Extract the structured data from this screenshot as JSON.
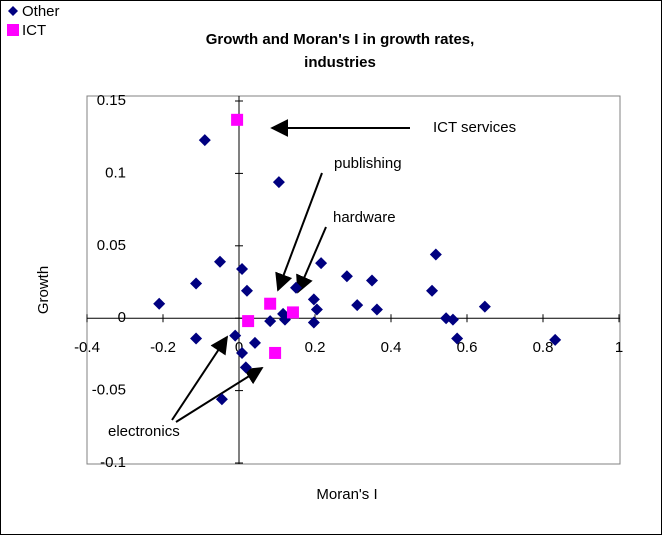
{
  "chart_data": {
    "type": "scatter",
    "title_lines": [
      "Growth and Moran's I in growth rates,",
      "industries"
    ],
    "x_label": "Moran's I",
    "y_label": "Growth",
    "xlim": [
      -0.4,
      1
    ],
    "ylim": [
      -0.1,
      0.15
    ],
    "xticks": [
      -0.4,
      -0.2,
      0,
      0.2,
      0.4,
      0.6,
      0.8,
      1
    ],
    "yticks": [
      0.15,
      0.1,
      0.05,
      0,
      -0.05,
      -0.1
    ],
    "grid": false,
    "legend": "top-left",
    "series": [
      {
        "name": "Other",
        "color": "#000080",
        "marker": "diamond",
        "x": [
          -0.09,
          0.105,
          -0.21,
          -0.113,
          -0.05,
          0.008,
          0.021,
          -0.113,
          -0.01,
          0.008,
          0.042,
          0.018,
          -0.045,
          0.082,
          0.116,
          0.121,
          0.15,
          0.197,
          0.205,
          0.197,
          0.216,
          0.284,
          0.311,
          0.35,
          0.363,
          0.518,
          0.508,
          0.545,
          0.563,
          0.574,
          0.647,
          0.832
        ],
        "values": [
          0.123,
          0.094,
          0.01,
          0.024,
          0.039,
          0.034,
          0.019,
          -0.014,
          -0.012,
          -0.024,
          -0.017,
          -0.034,
          -0.056,
          -0.002,
          0.003,
          -0.001,
          0.021,
          0.013,
          0.006,
          -0.003,
          0.038,
          0.029,
          0.009,
          0.026,
          0.006,
          0.044,
          0.019,
          0.0,
          -0.001,
          -0.014,
          0.008,
          -0.015
        ]
      },
      {
        "name": "ICT",
        "color": "#ff00ff",
        "marker": "square",
        "x": [
          -0.005,
          0.082,
          0.024,
          0.142,
          0.095
        ],
        "values": [
          0.137,
          0.01,
          -0.002,
          0.004,
          -0.024
        ]
      }
    ],
    "annotations": [
      "ICT services",
      "publishing",
      "hardware",
      "electronics"
    ]
  }
}
